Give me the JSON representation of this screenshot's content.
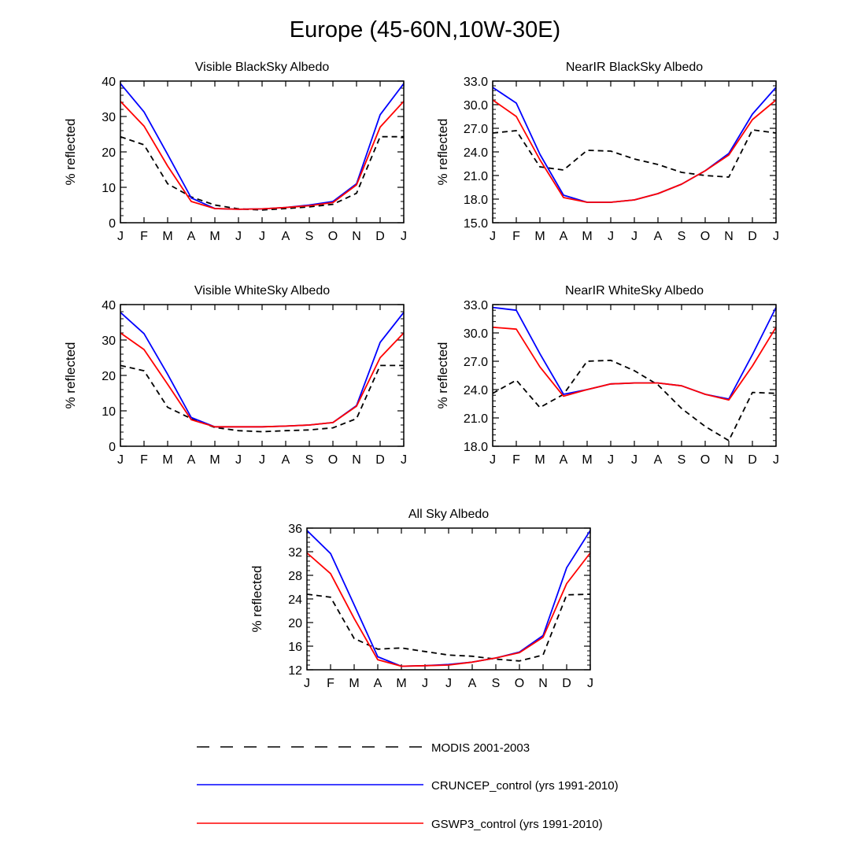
{
  "page": {
    "title": "Europe (45-60N,10W-30E)"
  },
  "legend": [
    {
      "name": "MODIS 2001-2003",
      "color": "#000000",
      "dash": true
    },
    {
      "name": "CRUNCEP_control (yrs 1991-2010)",
      "color": "#0000ff",
      "dash": false
    },
    {
      "name": "GSWP3_control (yrs 1991-2010)",
      "color": "#ff0000",
      "dash": false
    }
  ],
  "chart_data": [
    {
      "type": "line",
      "title": "Visible BlackSky Albedo",
      "ylabel": "% reflected",
      "categories": [
        "J",
        "F",
        "M",
        "A",
        "M",
        "J",
        "J",
        "A",
        "S",
        "O",
        "N",
        "D",
        "J"
      ],
      "ylim": [
        0,
        40
      ],
      "yticks": [
        "0",
        "10",
        "20",
        "30",
        "40"
      ],
      "series": [
        {
          "name": "MODIS 2001-2003",
          "values": [
            24.3,
            22.0,
            11.0,
            7.3,
            5.0,
            3.9,
            3.6,
            4.0,
            4.5,
            5.2,
            8.3,
            24.3,
            24.3
          ]
        },
        {
          "name": "CRUNCEP_control (yrs 1991-2010)",
          "values": [
            39.3,
            31.3,
            19.3,
            7.0,
            4.0,
            3.8,
            3.9,
            4.3,
            5.0,
            6.0,
            11.0,
            30.5,
            39.3
          ]
        },
        {
          "name": "GSWP3_control (yrs 1991-2010)",
          "values": [
            34.3,
            27.3,
            16.0,
            6.0,
            4.0,
            3.8,
            3.9,
            4.3,
            4.8,
            5.7,
            10.7,
            27.0,
            34.3
          ]
        }
      ]
    },
    {
      "type": "line",
      "title": "NearIR BlackSky Albedo",
      "ylabel": "% reflected",
      "categories": [
        "J",
        "F",
        "M",
        "A",
        "M",
        "J",
        "J",
        "A",
        "S",
        "O",
        "N",
        "D",
        "J"
      ],
      "ylim": [
        15,
        33
      ],
      "yticks": [
        "15.0",
        "18.0",
        "21.0",
        "24.0",
        "27.0",
        "30.0",
        "33.0"
      ],
      "series": [
        {
          "name": "MODIS 2001-2003",
          "values": [
            26.4,
            26.7,
            22.1,
            21.7,
            24.2,
            24.1,
            23.1,
            22.4,
            21.4,
            21.0,
            20.8,
            26.8,
            26.4
          ]
        },
        {
          "name": "CRUNCEP_control (yrs 1991-2010)",
          "values": [
            32.2,
            30.2,
            23.7,
            18.5,
            17.6,
            17.6,
            17.9,
            18.7,
            19.9,
            21.6,
            23.8,
            28.8,
            32.2
          ]
        },
        {
          "name": "GSWP3_control (yrs 1991-2010)",
          "values": [
            30.6,
            28.5,
            23.0,
            18.2,
            17.6,
            17.6,
            17.9,
            18.7,
            19.9,
            21.6,
            23.6,
            28.1,
            30.6
          ]
        }
      ]
    },
    {
      "type": "line",
      "title": "Visible WhiteSky Albedo",
      "ylabel": "% reflected",
      "categories": [
        "J",
        "F",
        "M",
        "A",
        "M",
        "J",
        "J",
        "A",
        "S",
        "O",
        "N",
        "D",
        "J"
      ],
      "ylim": [
        0,
        40
      ],
      "yticks": [
        "0",
        "10",
        "20",
        "30",
        "40"
      ],
      "series": [
        {
          "name": "MODIS 2001-2003",
          "values": [
            22.8,
            21.3,
            11.0,
            7.8,
            5.3,
            4.4,
            4.1,
            4.4,
            4.6,
            5.2,
            7.8,
            22.8,
            22.8
          ]
        },
        {
          "name": "CRUNCEP_control (yrs 1991-2010)",
          "values": [
            37.8,
            31.8,
            20.3,
            8.1,
            5.5,
            5.5,
            5.5,
            5.7,
            6.0,
            6.7,
            11.5,
            29.3,
            37.8
          ]
        },
        {
          "name": "GSWP3_control (yrs 1991-2010)",
          "values": [
            32.0,
            27.3,
            17.5,
            7.5,
            5.5,
            5.5,
            5.5,
            5.7,
            6.0,
            6.7,
            11.3,
            25.0,
            32.0
          ]
        }
      ]
    },
    {
      "type": "line",
      "title": "NearIR WhiteSky Albedo",
      "ylabel": "% reflected",
      "categories": [
        "J",
        "F",
        "M",
        "A",
        "M",
        "J",
        "J",
        "A",
        "S",
        "O",
        "N",
        "D",
        "J"
      ],
      "ylim": [
        18,
        33
      ],
      "yticks": [
        "18.0",
        "21.0",
        "24.0",
        "27.0",
        "30.0",
        "33.0"
      ],
      "series": [
        {
          "name": "MODIS 2001-2003",
          "values": [
            23.6,
            25.0,
            22.1,
            23.5,
            27.0,
            27.1,
            26.0,
            24.5,
            22.0,
            20.1,
            18.6,
            23.7,
            23.6
          ]
        },
        {
          "name": "CRUNCEP_control (yrs 1991-2010)",
          "values": [
            32.7,
            32.4,
            27.8,
            23.5,
            24.0,
            24.6,
            24.7,
            24.7,
            24.4,
            23.5,
            23.0,
            27.7,
            32.7
          ]
        },
        {
          "name": "GSWP3_control (yrs 1991-2010)",
          "values": [
            30.6,
            30.4,
            26.4,
            23.3,
            24.0,
            24.6,
            24.7,
            24.7,
            24.4,
            23.5,
            22.9,
            26.5,
            30.6
          ]
        }
      ]
    },
    {
      "type": "line",
      "title": "All Sky Albedo",
      "ylabel": "% reflected",
      "categories": [
        "J",
        "F",
        "M",
        "A",
        "M",
        "J",
        "J",
        "A",
        "S",
        "O",
        "N",
        "D",
        "J"
      ],
      "ylim": [
        12,
        36
      ],
      "yticks": [
        "12",
        "16",
        "20",
        "24",
        "28",
        "32",
        "36"
      ],
      "series": [
        {
          "name": "MODIS 2001-2003",
          "values": [
            24.8,
            24.3,
            17.3,
            15.5,
            15.7,
            15.1,
            14.5,
            14.3,
            13.8,
            13.5,
            14.5,
            24.7,
            24.8
          ]
        },
        {
          "name": "CRUNCEP_control (yrs 1991-2010)",
          "values": [
            35.6,
            31.7,
            23.0,
            14.2,
            12.6,
            12.7,
            12.9,
            13.3,
            14.0,
            15.0,
            17.8,
            29.3,
            35.6
          ]
        },
        {
          "name": "GSWP3_control (yrs 1991-2010)",
          "values": [
            31.8,
            28.3,
            20.7,
            13.7,
            12.6,
            12.7,
            12.8,
            13.3,
            14.0,
            14.9,
            17.5,
            26.6,
            31.8
          ]
        }
      ]
    }
  ]
}
